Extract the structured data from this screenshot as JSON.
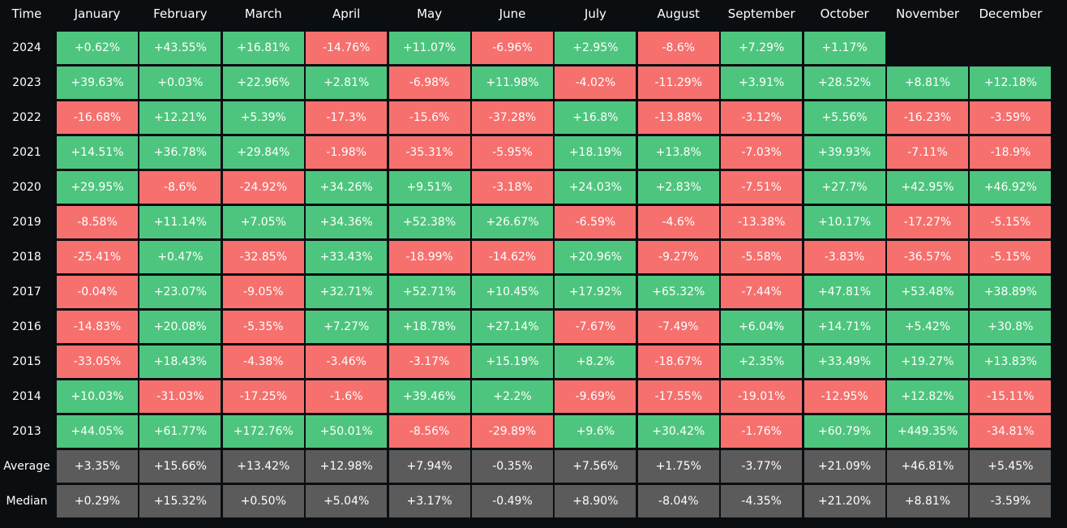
{
  "table": {
    "header": [
      "Time",
      "January",
      "February",
      "March",
      "April",
      "May",
      "June",
      "July",
      "August",
      "September",
      "October",
      "November",
      "December"
    ],
    "rows": [
      {
        "label": "2024",
        "cells": [
          "+0.62%",
          "+43.55%",
          "+16.81%",
          "-14.76%",
          "+11.07%",
          "-6.96%",
          "+2.95%",
          "-8.6%",
          "+7.29%",
          "+1.17%"
        ]
      },
      {
        "label": "2023",
        "cells": [
          "+39.63%",
          "+0.03%",
          "+22.96%",
          "+2.81%",
          "-6.98%",
          "+11.98%",
          "-4.02%",
          "-11.29%",
          "+3.91%",
          "+28.52%",
          "+8.81%",
          "+12.18%"
        ]
      },
      {
        "label": "2022",
        "cells": [
          "-16.68%",
          "+12.21%",
          "+5.39%",
          "-17.3%",
          "-15.6%",
          "-37.28%",
          "+16.8%",
          "-13.88%",
          "-3.12%",
          "+5.56%",
          "-16.23%",
          "-3.59%"
        ]
      },
      {
        "label": "2021",
        "cells": [
          "+14.51%",
          "+36.78%",
          "+29.84%",
          "-1.98%",
          "-35.31%",
          "-5.95%",
          "+18.19%",
          "+13.8%",
          "-7.03%",
          "+39.93%",
          "-7.11%",
          "-18.9%"
        ]
      },
      {
        "label": "2020",
        "cells": [
          "+29.95%",
          "-8.6%",
          "-24.92%",
          "+34.26%",
          "+9.51%",
          "-3.18%",
          "+24.03%",
          "+2.83%",
          "-7.51%",
          "+27.7%",
          "+42.95%",
          "+46.92%"
        ]
      },
      {
        "label": "2019",
        "cells": [
          "-8.58%",
          "+11.14%",
          "+7.05%",
          "+34.36%",
          "+52.38%",
          "+26.67%",
          "-6.59%",
          "-4.6%",
          "-13.38%",
          "+10.17%",
          "-17.27%",
          "-5.15%"
        ]
      },
      {
        "label": "2018",
        "cells": [
          "-25.41%",
          "+0.47%",
          "-32.85%",
          "+33.43%",
          "-18.99%",
          "-14.62%",
          "+20.96%",
          "-9.27%",
          "-5.58%",
          "-3.83%",
          "-36.57%",
          "-5.15%"
        ]
      },
      {
        "label": "2017",
        "cells": [
          "-0.04%",
          "+23.07%",
          "-9.05%",
          "+32.71%",
          "+52.71%",
          "+10.45%",
          "+17.92%",
          "+65.32%",
          "-7.44%",
          "+47.81%",
          "+53.48%",
          "+38.89%"
        ]
      },
      {
        "label": "2016",
        "cells": [
          "-14.83%",
          "+20.08%",
          "-5.35%",
          "+7.27%",
          "+18.78%",
          "+27.14%",
          "-7.67%",
          "-7.49%",
          "+6.04%",
          "+14.71%",
          "+5.42%",
          "+30.8%"
        ]
      },
      {
        "label": "2015",
        "cells": [
          "-33.05%",
          "+18.43%",
          "-4.38%",
          "-3.46%",
          "-3.17%",
          "+15.19%",
          "+8.2%",
          "-18.67%",
          "+2.35%",
          "+33.49%",
          "+19.27%",
          "+13.83%"
        ]
      },
      {
        "label": "2014",
        "cells": [
          "+10.03%",
          "-31.03%",
          "-17.25%",
          "-1.6%",
          "+39.46%",
          "+2.2%",
          "-9.69%",
          "-17.55%",
          "-19.01%",
          "-12.95%",
          "+12.82%",
          "-15.11%"
        ]
      },
      {
        "label": "2013",
        "cells": [
          "+44.05%",
          "+61.77%",
          "+172.76%",
          "+50.01%",
          "-8.56%",
          "-29.89%",
          "+9.6%",
          "+30.42%",
          "-1.76%",
          "+60.79%",
          "+449.35%",
          "-34.81%"
        ]
      }
    ],
    "summary_rows": [
      {
        "label": "Average",
        "cells": [
          "+3.35%",
          "+15.66%",
          "+13.42%",
          "+12.98%",
          "+7.94%",
          "-0.35%",
          "+7.56%",
          "+1.75%",
          "-3.77%",
          "+21.09%",
          "+46.81%",
          "+5.45%"
        ]
      },
      {
        "label": "Median",
        "cells": [
          "+0.29%",
          "+15.32%",
          "+0.50%",
          "+5.04%",
          "+3.17%",
          "-0.49%",
          "+8.90%",
          "-8.04%",
          "-4.35%",
          "+21.20%",
          "+8.81%",
          "-3.59%"
        ]
      }
    ]
  }
}
